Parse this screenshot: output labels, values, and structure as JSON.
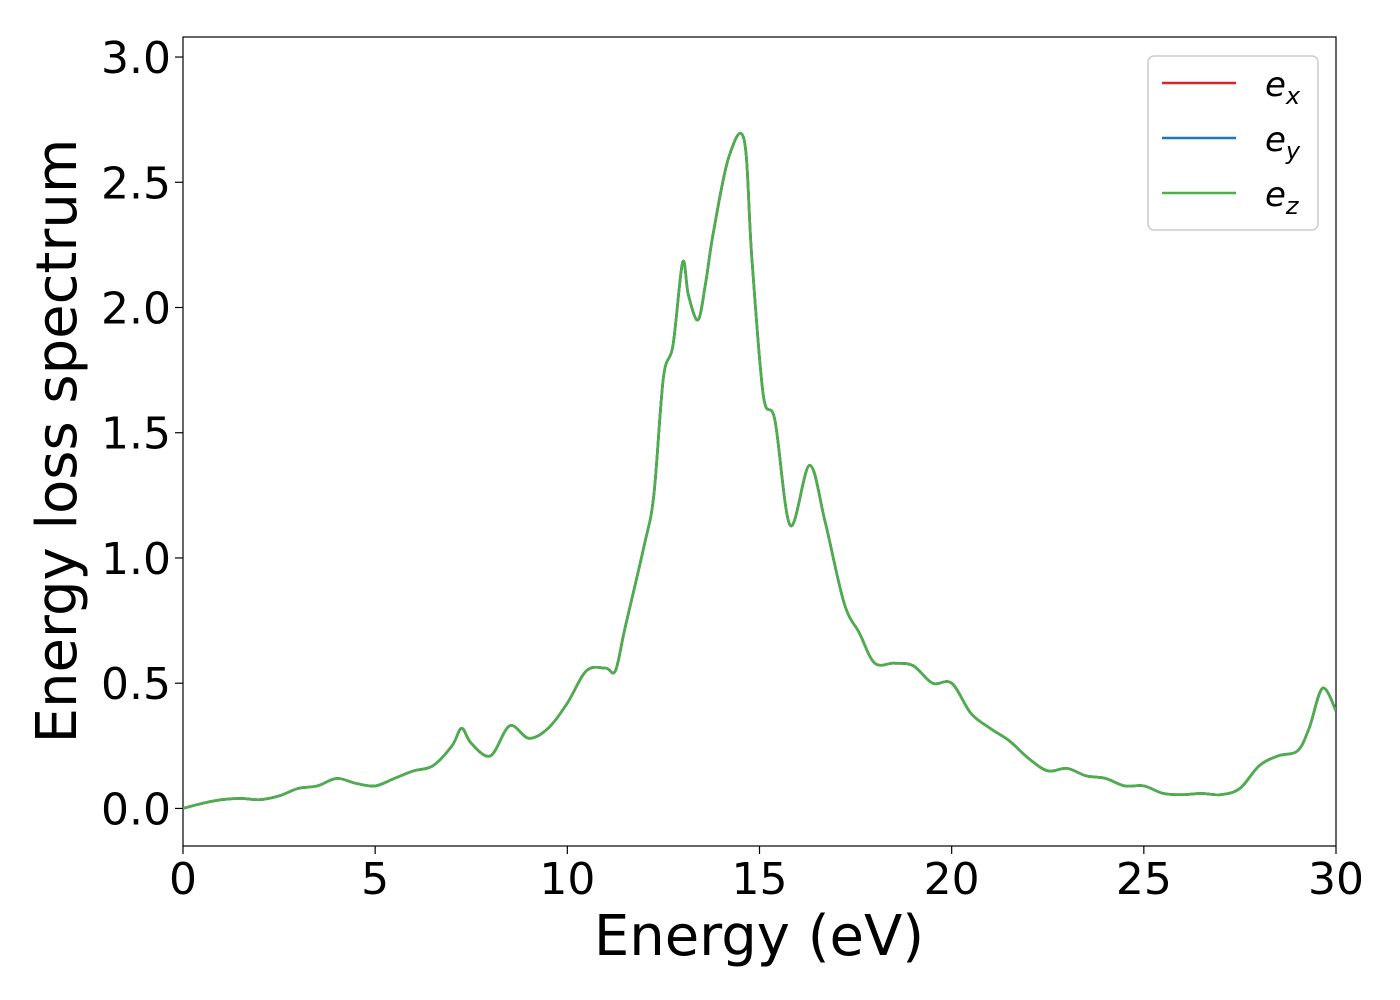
{
  "chart_data": {
    "type": "line",
    "title": "",
    "xlabel": "Energy (eV)",
    "ylabel": "Energy loss spectrum",
    "xlim": [
      0,
      30
    ],
    "ylim": [
      -0.15,
      3.08
    ],
    "xticks": [
      0,
      5,
      10,
      15,
      20,
      25,
      30
    ],
    "xtick_labels": [
      "0",
      "5",
      "10",
      "15",
      "20",
      "25",
      "30"
    ],
    "yticks": [
      0.0,
      0.5,
      1.0,
      1.5,
      2.0,
      2.5,
      3.0
    ],
    "ytick_labels": [
      "0.0",
      "0.5",
      "1.0",
      "1.5",
      "2.0",
      "2.5",
      "3.0"
    ],
    "grid": false,
    "legend_position": "top-right",
    "series": [
      {
        "name": "e",
        "subscript": "x",
        "color": "#d62728"
      },
      {
        "name": "e",
        "subscript": "y",
        "color": "#1f77b4"
      },
      {
        "name": "e",
        "subscript": "z",
        "color": "#4daf4a"
      }
    ],
    "shared_curve": {
      "x": [
        0,
        0.5,
        1,
        1.5,
        2,
        2.5,
        3,
        3.5,
        4,
        4.5,
        5,
        5.5,
        6,
        6.5,
        7,
        7.25,
        7.5,
        8,
        8.5,
        9,
        9.5,
        10,
        10.5,
        11,
        11.25,
        11.5,
        12,
        12.25,
        12.5,
        12.75,
        13,
        13.15,
        13.4,
        13.6,
        13.8,
        14.2,
        14.6,
        14.8,
        15.1,
        15.4,
        15.8,
        16.3,
        16.7,
        17.2,
        17.6,
        18,
        18.5,
        19,
        19.5,
        20,
        20.5,
        21,
        21.5,
        22,
        22.5,
        23,
        23.5,
        24,
        24.5,
        25,
        25.5,
        26,
        26.5,
        27,
        27.5,
        28,
        28.5,
        29,
        29.3,
        29.65,
        30
      ],
      "y": [
        0.0,
        0.02,
        0.035,
        0.04,
        0.035,
        0.05,
        0.08,
        0.09,
        0.12,
        0.1,
        0.09,
        0.12,
        0.15,
        0.17,
        0.25,
        0.32,
        0.26,
        0.21,
        0.33,
        0.28,
        0.32,
        0.42,
        0.55,
        0.56,
        0.55,
        0.72,
        1.05,
        1.25,
        1.72,
        1.85,
        2.18,
        2.05,
        1.95,
        2.1,
        2.3,
        2.6,
        2.67,
        2.2,
        1.65,
        1.55,
        1.13,
        1.37,
        1.15,
        0.82,
        0.7,
        0.58,
        0.58,
        0.57,
        0.5,
        0.5,
        0.38,
        0.32,
        0.27,
        0.2,
        0.15,
        0.16,
        0.13,
        0.12,
        0.09,
        0.09,
        0.06,
        0.055,
        0.06,
        0.055,
        0.08,
        0.17,
        0.21,
        0.23,
        0.32,
        0.48,
        0.39
      ]
    }
  }
}
